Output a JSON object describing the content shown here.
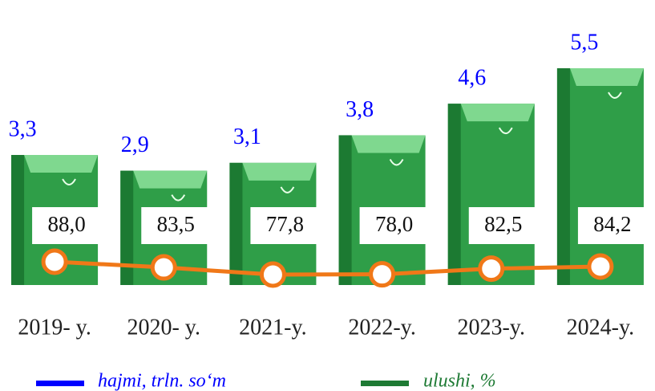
{
  "chart_data": {
    "type": "bar_line",
    "categories": [
      "2019- y.",
      "2020- y.",
      "2021-y.",
      "2022-y.",
      "2023-y.",
      "2024-y."
    ],
    "series": [
      {
        "name": "hajmi, trln. so‘m",
        "color": "#0000ff",
        "bar_color": "#2f9e48",
        "values": [
          3.3,
          2.9,
          3.1,
          3.8,
          4.6,
          5.5
        ],
        "value_labels": [
          "3,3",
          "2,9",
          "3,1",
          "3,8",
          "4,6",
          "5,5"
        ]
      },
      {
        "name": "ulushi, %",
        "color": "#1e7a34",
        "line_color": "#f07818",
        "values": [
          88.0,
          83.5,
          77.8,
          78.0,
          82.5,
          84.2
        ],
        "value_labels": [
          "88,0",
          "83,5",
          "77,8",
          "78,0",
          "82,5",
          "84,2"
        ]
      }
    ]
  }
}
